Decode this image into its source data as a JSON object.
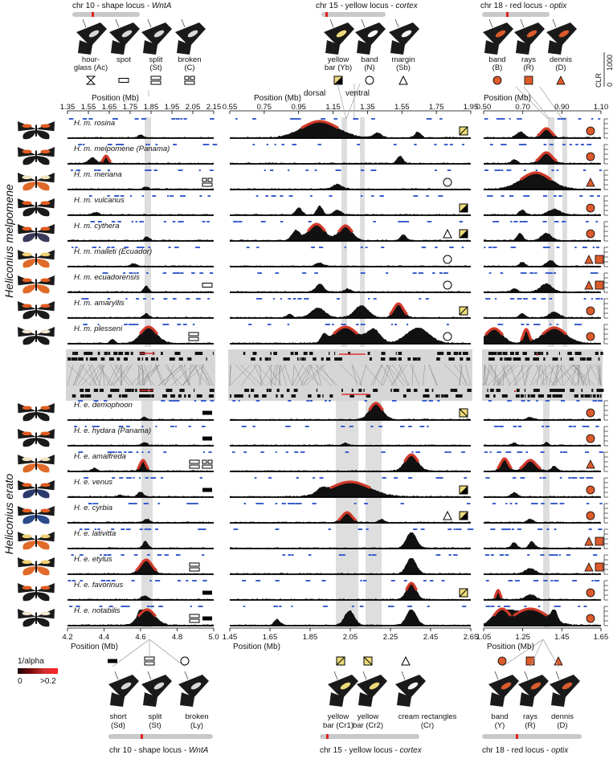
{
  "top": {
    "locus_titles": [
      {
        "pre": "chr 10 - shape locus - ",
        "gene": "WntA"
      },
      {
        "pre": "chr 15 - yellow locus - ",
        "gene": "cortex"
      },
      {
        "pre": "chr 18 - red locus - ",
        "gene": "optix"
      }
    ],
    "phenotypes": [
      {
        "l1": "hour-",
        "l2": "glass (Ac)",
        "symbol": "hourglass"
      },
      {
        "l1": "spot",
        "l2": "",
        "symbol": "bar-open"
      },
      {
        "l1": "split",
        "l2": "(St)",
        "symbol": "split"
      },
      {
        "l1": "broken",
        "l2": "(C)",
        "symbol": "broken"
      },
      {
        "l1": "yellow",
        "l2": "bar (Yb)",
        "symbol": "yellow-both"
      },
      {
        "l1": "band",
        "l2": "(N)",
        "symbol": "circle-open"
      },
      {
        "l1": "margin",
        "l2": "(Sb)",
        "symbol": "triangle-open"
      },
      {
        "l1": "band",
        "l2": "(B)",
        "symbol": "circle-red"
      },
      {
        "l1": "rays",
        "l2": "(R)",
        "symbol": "square-red"
      },
      {
        "l1": "dennis",
        "l2": "(D)",
        "symbol": "triangle-red"
      }
    ],
    "dorsal": "dorsal",
    "ventral": "ventral",
    "clr_label": "CLR",
    "clr_ticks": [
      "0",
      "1000"
    ]
  },
  "axes_top": [
    {
      "title": "Position (Mb)",
      "ticks": [
        "1.35",
        "1.55",
        "1.65",
        "1.75",
        "1.85",
        "1.95",
        "2.05",
        "2.15"
      ]
    },
    {
      "title": "Position (Mb)",
      "ticks": [
        "0.55",
        "0.75",
        "0.95",
        "1.15",
        "1.35",
        "1.55",
        "1.75",
        "1.95"
      ]
    },
    {
      "title": "Position (Mb)",
      "ticks": [
        "0.50",
        "0.70",
        "0.90",
        "1.10"
      ]
    }
  ],
  "axes_bottom": [
    {
      "title": "Position (Mb)",
      "ticks": [
        "4.2",
        "4.4",
        "4.6",
        "4.8",
        "5.0"
      ]
    },
    {
      "title": "Position (Mb)",
      "ticks": [
        "1.45",
        "1.65",
        "1.85",
        "2.05",
        "2.25",
        "2.45",
        "2.65"
      ]
    },
    {
      "title": "Position (Mb)",
      "ticks": [
        "1.05",
        "1.25",
        "1.45",
        "1.65"
      ]
    }
  ],
  "species": [
    {
      "label": "Heliconius melpomene",
      "rows": [
        {
          "name": "H. m. rosina",
          "wing": "#e05a1e",
          "hw": "#1a1a1a"
        },
        {
          "name": "H. m. melpomene (Panama)",
          "wing": "#e05a1e",
          "hw": "#1a1a1a"
        },
        {
          "name": "H. m. meriana",
          "wing": "#f0e4c0",
          "hw": "#e06a2a"
        },
        {
          "name": "H. m. vulcanus",
          "wing": "#e05a1e",
          "hw": "#1a1a1a"
        },
        {
          "name": "H. m. cythera",
          "wing": "#e05a1e",
          "hw": "#3a3a5a"
        },
        {
          "name": "H. m. malleti (Ecuador)",
          "wing": "#f0d070",
          "hw": "#e06a2a"
        },
        {
          "name": "H. m. ecuadorensis",
          "wing": "#e05a1e",
          "hw": "#e06a2a"
        },
        {
          "name": "H. m. amaryllis",
          "wing": "#e05a1e",
          "hw": "#1a1a1a"
        },
        {
          "name": "H. m. plesseni",
          "wing": "#f0e4d0",
          "hw": "#1a1a1a"
        }
      ]
    },
    {
      "label": "Heliconius erato",
      "rows": [
        {
          "name": "H. e. demophoon",
          "wing": "#e05a1e",
          "hw": "#1a1a1a"
        },
        {
          "name": "H. e. hydara (Panama)",
          "wing": "#e05a1e",
          "hw": "#1a1a1a"
        },
        {
          "name": "H. e. amalfreda",
          "wing": "#f0e4c0",
          "hw": "#e06a2a"
        },
        {
          "name": "H. e. venus",
          "wing": "#e05a1e",
          "hw": "#2a3a6a"
        },
        {
          "name": "H. e. cyrbia",
          "wing": "#e05a1e",
          "hw": "#2a4a8a"
        },
        {
          "name": "H. e. lativitta",
          "wing": "#f0d070",
          "hw": "#e06a2a"
        },
        {
          "name": "H. e. etylus",
          "wing": "#f0d070",
          "hw": "#e06a2a"
        },
        {
          "name": "H. e. favorinus",
          "wing": "#e05a1e",
          "hw": "#1a1a1a"
        },
        {
          "name": "H. e. notabilis",
          "wing": "#f0e4d0",
          "hw": "#1a1a1a"
        }
      ]
    }
  ],
  "bottom": {
    "locus_titles": [
      {
        "pre": "chr 10 - shape locus - ",
        "gene": "WntA"
      },
      {
        "pre": "chr 15 - yellow locus - ",
        "gene": "cortex"
      },
      {
        "pre": "chr 18 - red locus - ",
        "gene": "optix"
      }
    ],
    "phenotypes": [
      {
        "l1": "short",
        "l2": "(Sd)",
        "symbol": "bar-filled"
      },
      {
        "l1": "split",
        "l2": "(St)",
        "symbol": "split"
      },
      {
        "l1": "broken",
        "l2": "(Ly)",
        "symbol": "circle-open"
      },
      {
        "l1": "yellow",
        "l2": "bar (Cr1)",
        "symbol": "yellow-ul"
      },
      {
        "l1": "yellow",
        "l2": "bar (Cr2)",
        "symbol": "yellow-br"
      },
      {
        "l1": "cream rectangles",
        "l2": "(Cr)",
        "symbol": "triangle-open"
      },
      {
        "l1": "band",
        "l2": "(Y)",
        "symbol": "circle-red"
      },
      {
        "l1": "rays",
        "l2": "(R)",
        "symbol": "square-red"
      },
      {
        "l1": "dennis",
        "l2": "(D)",
        "symbol": "triangle-red"
      }
    ]
  },
  "legend": {
    "title": "1/alpha",
    "min": "0",
    "max": ">0.2",
    "colors": [
      "#1a0000",
      "#7a0a0a",
      "#d03030",
      "#ff2020"
    ]
  },
  "colors": {
    "accent_red": "#d13a2a",
    "symbol_red": "#dc5b2c",
    "yellow": "#eddb7a",
    "snp_blue": "#3a5fcd",
    "shade": "#dedede"
  }
}
